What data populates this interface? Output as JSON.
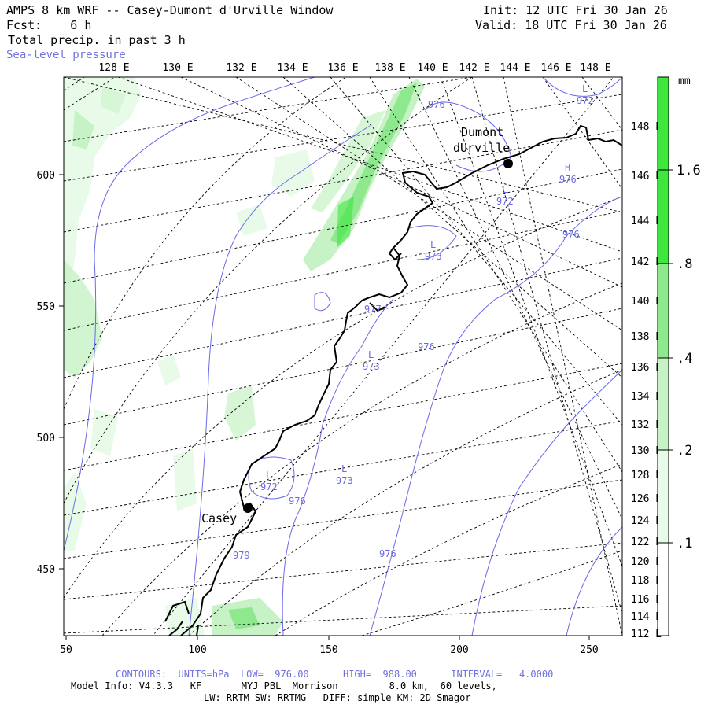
{
  "header": {
    "title": "AMPS 8 km WRF -- Casey-Dumont d'Urville Window",
    "forecast": "Fcst:    6 h",
    "field": "Total precip. in past 3 h",
    "overlay": "Sea-level pressure",
    "init": "Init: 12 UTC Fri 30 Jan 26",
    "valid": "Valid: 18 UTC Fri 30 Jan 26"
  },
  "top_lon_labels": [
    "128 E",
    "130 E",
    "132 E",
    "134 E",
    "136 E",
    "138 E",
    "140 E",
    "142 E",
    "144 E",
    "146 E",
    "148 E"
  ],
  "right_lon_labels": [
    "148 E",
    "146 E",
    "144 E",
    "142 E",
    "140 E",
    "138 E",
    "136 E",
    "134 E",
    "132 E",
    "130 E",
    "128 E",
    "126 E",
    "124 E",
    "122 E",
    "120 E",
    "118 E",
    "116 E",
    "114 E",
    "112 E"
  ],
  "x_axis": [
    "50",
    "100",
    "150",
    "200",
    "250"
  ],
  "y_axis": [
    "600",
    "550",
    "500",
    "450"
  ],
  "colorbar": {
    "unit": "mm",
    "levels": [
      ".1",
      ".2",
      ".4",
      ".8",
      "1.6"
    ],
    "colors": [
      "#ffffff",
      "#e8fae8",
      "#c6f2c6",
      "#8ee88e",
      "#3ee63e"
    ]
  },
  "stations": [
    {
      "name_line1": "Dumont",
      "name_line2": "dUrville"
    },
    {
      "name_line1": "Casey",
      "name_line2": ""
    }
  ],
  "pressure_labels": [
    {
      "sym": "L",
      "val": "972"
    },
    {
      "sym": "H",
      "val": "976"
    },
    {
      "sym": "L",
      "val": "972"
    },
    {
      "sym": "",
      "val": "976"
    },
    {
      "sym": "L",
      "val": "973"
    },
    {
      "sym": "",
      "val": "976"
    },
    {
      "sym": "L",
      "val": "973"
    },
    {
      "sym": "L",
      "val": "972"
    },
    {
      "sym": "",
      "val": "976"
    },
    {
      "sym": "L",
      "val": "973"
    },
    {
      "sym": "",
      "val": "976"
    },
    {
      "sym": "",
      "val": "979"
    },
    {
      "sym": "",
      "val": "976"
    },
    {
      "sym": "",
      "val": "977"
    }
  ],
  "footer": {
    "contours": "CONTOURS:  UNITS=hPa  LOW=  976.00      HIGH=  988.00      INTERVAL=   4.0000",
    "model": "Model Info: V4.3.3   KF       MYJ PBL  Morrison         8.0 km,  60 levels,",
    "physics": "LW: RRTM SW: RRTMG   DIFF: simple KM: 2D Smagor"
  }
}
